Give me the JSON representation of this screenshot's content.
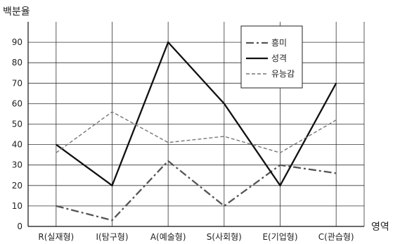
{
  "chart_data": {
    "type": "line",
    "title": "",
    "ylabel": "백분율",
    "xlabel": "영역",
    "categories": [
      "R(실재형)",
      "I(탐구형)",
      "A(예술형)",
      "S(사회형)",
      "E(기업형)",
      "C(관습형)"
    ],
    "ylim": [
      0,
      100
    ],
    "yticks": [
      0,
      10,
      20,
      30,
      40,
      50,
      60,
      70,
      80,
      90
    ],
    "grid": true,
    "legend_position": "top-right",
    "series": [
      {
        "name": "흥미",
        "values": [
          10,
          3,
          32,
          10,
          30,
          26
        ],
        "style": "dash-dot",
        "color": "#555555"
      },
      {
        "name": "성격",
        "values": [
          40,
          20,
          90,
          60,
          20,
          70
        ],
        "style": "solid",
        "color": "#111111"
      },
      {
        "name": "유능감",
        "values": [
          36,
          56,
          41,
          44,
          36,
          52
        ],
        "style": "dashed",
        "color": "#777777"
      }
    ]
  }
}
